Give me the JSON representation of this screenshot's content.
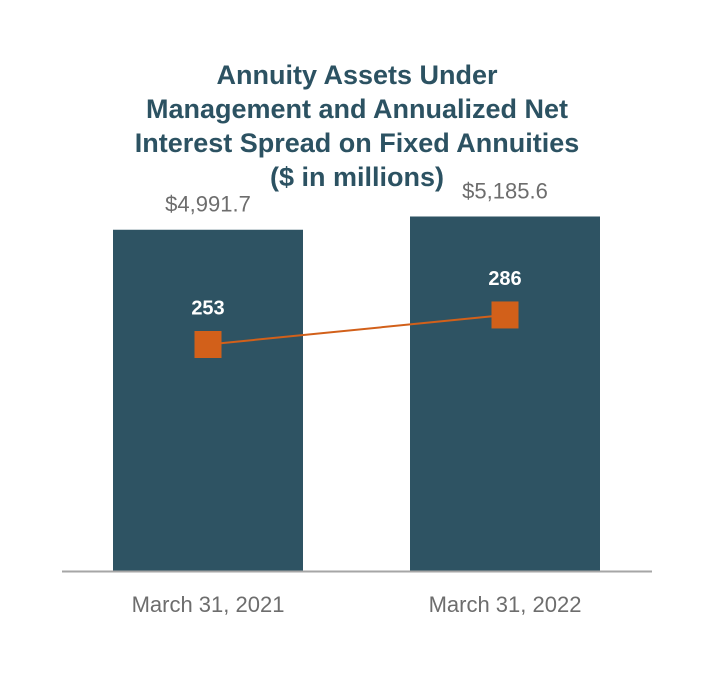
{
  "chart_data": {
    "type": "bar",
    "title_lines": [
      "Annuity Assets Under",
      "Management and Annualized Net",
      "Interest Spread on Fixed Annuities",
      "($ in millions)"
    ],
    "categories": [
      "March 31, 2021",
      "March 31, 2022"
    ],
    "series": [
      {
        "type": "bar",
        "values": [
          4991.7,
          5185.6
        ],
        "data_labels": [
          "$4,991.7",
          "$5,185.6"
        ],
        "color": "#2e5363"
      },
      {
        "type": "line",
        "values": [
          253,
          286
        ],
        "data_labels": [
          "253",
          "286"
        ],
        "color": "#d2601a",
        "marker": "square"
      }
    ],
    "ylim": [
      0,
      5500
    ],
    "y2lim": [
      0,
      420
    ],
    "grid": false,
    "legend": "none",
    "axis_color": "#a6a6a6"
  }
}
